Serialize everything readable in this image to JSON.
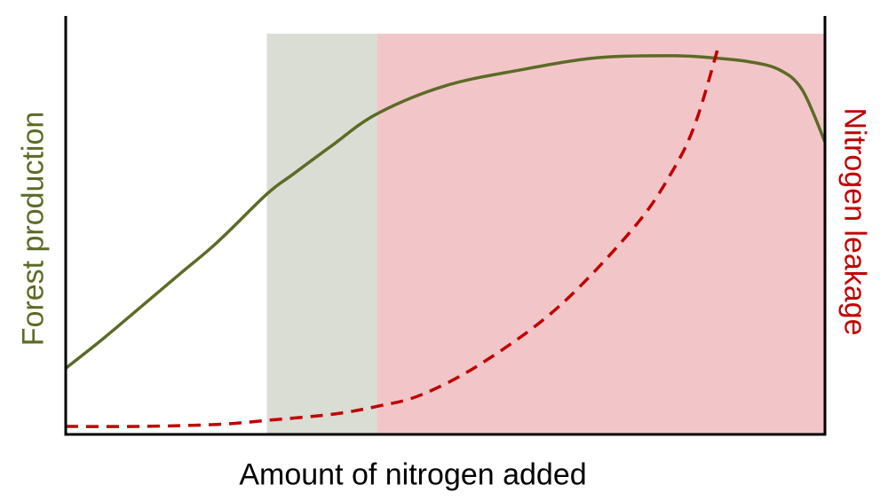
{
  "chart_data": {
    "type": "line",
    "xlabel": "Amount of nitrogen added",
    "ylabel_left": "Forest production",
    "ylabel_right": "Nitrogen leakage",
    "xlim": [
      0,
      100
    ],
    "ylim": [
      0,
      100
    ],
    "grid": false,
    "x_ticks_shown": false,
    "y_ticks_shown": false,
    "regions": [
      {
        "x_start": 26.5,
        "x_end": 41,
        "color": "#d9ddd3"
      },
      {
        "x_start": 41,
        "x_end": 100,
        "color": "#f2c6c9"
      }
    ],
    "series": [
      {
        "name": "Forest production",
        "axis": "left",
        "color": "#5c6b26",
        "style": "solid",
        "x": [
          0,
          5,
          10,
          15,
          20,
          26.5,
          30,
          35,
          41,
          50,
          60,
          70,
          80,
          85,
          90,
          94,
          97,
          100
        ],
        "values": [
          16.5,
          24,
          32,
          40,
          48,
          60,
          65,
          72,
          80,
          87,
          91,
          94,
          94.5,
          94,
          93,
          91,
          86,
          73
        ]
      },
      {
        "name": "Nitrogen leakage",
        "axis": "right",
        "color": "#c00000",
        "style": "dashed",
        "x": [
          0,
          10,
          20,
          26.5,
          35,
          41,
          47,
          55,
          65,
          75,
          80,
          83,
          86
        ],
        "values": [
          2,
          2,
          2.5,
          3.5,
          5,
          7,
          10,
          18,
          32,
          52,
          66,
          78,
          97
        ]
      }
    ],
    "colors": {
      "axis": "#000000",
      "left_label": "#5c6b26",
      "right_label": "#c00000"
    }
  }
}
